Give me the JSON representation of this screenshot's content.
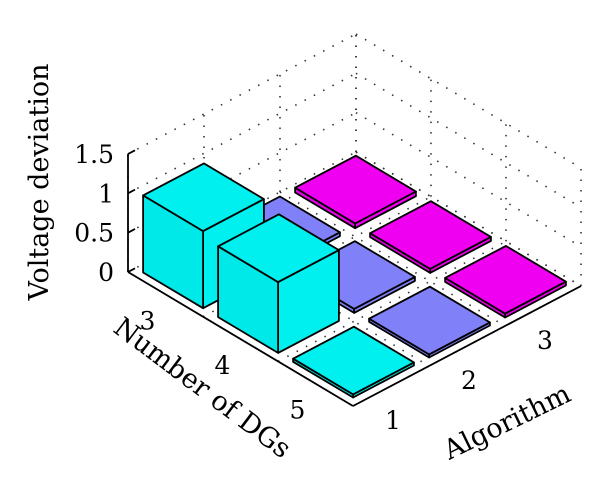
{
  "chart_data": {
    "type": "bar3d",
    "zlabel": "Voltage deviation",
    "ylabel": "Number of DGs",
    "xlabel": "Algorithm",
    "zlim": [
      0,
      1.5
    ],
    "z_ticks": [
      "0",
      "0.5",
      "1",
      "1.5"
    ],
    "algorithms": [
      "1",
      "2",
      "3"
    ],
    "dgs": [
      "3",
      "4",
      "5"
    ],
    "grid": true,
    "series": [
      {
        "name": "3",
        "values": [
          0.98,
          0.05,
          0.06
        ]
      },
      {
        "name": "4",
        "values": [
          0.9,
          0.05,
          0.05
        ]
      },
      {
        "name": "5",
        "values": [
          0.04,
          0.04,
          0.05
        ]
      }
    ],
    "colors": {
      "algorithm_1": "#00f0f0",
      "algorithm_2": "#8080f8",
      "algorithm_3": "#f000f0"
    }
  }
}
